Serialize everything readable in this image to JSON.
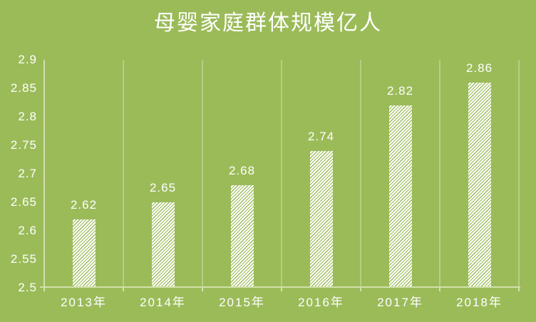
{
  "title": {
    "text": "母婴家庭群体规模亿人"
  },
  "chart_data": {
    "type": "bar",
    "title": "母婴家庭群体规模亿人",
    "categories": [
      "2013年",
      "2014年",
      "2015年",
      "2016年",
      "2017年",
      "2018年"
    ],
    "values": [
      2.62,
      2.65,
      2.68,
      2.74,
      2.82,
      2.86
    ],
    "value_labels": [
      "2.62",
      "2.65",
      "2.68",
      "2.74",
      "2.82",
      "2.86"
    ],
    "xlabel": "",
    "ylabel": "",
    "ylim": [
      2.5,
      2.9
    ],
    "ytick_step": 0.05,
    "ytick_labels": [
      "2.9",
      "2.85",
      "2.8",
      "2.75",
      "2.7",
      "2.65",
      "2.6",
      "2.55",
      "2.5"
    ],
    "grid": "vertical category separators only",
    "legend": "none",
    "bar_style": "white fill with diagonal upward hatch"
  },
  "colors": {
    "background": "#9bbb59",
    "text": "#ffffff",
    "gridline": "#b9cc85",
    "axis_line": "#d2e0ac",
    "bar_fill": "#ffffff",
    "bar_stripe": "#9bbb59"
  }
}
